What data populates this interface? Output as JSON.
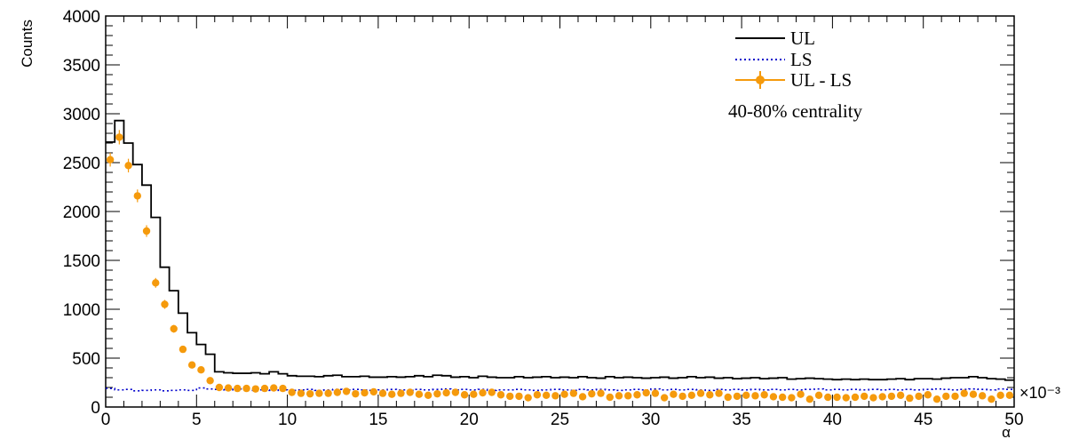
{
  "chart_data": {
    "type": "line",
    "title": "",
    "xlabel": "α",
    "ylabel": "Counts",
    "xlim": [
      0,
      50
    ],
    "ylim": [
      0,
      4000
    ],
    "x_multiplier": "×10⁻³",
    "x_ticks": [
      "0",
      "5",
      "10",
      "15",
      "20",
      "25",
      "30",
      "35",
      "40",
      "45",
      "50"
    ],
    "y_ticks": [
      "0",
      "500",
      "1000",
      "1500",
      "2000",
      "2500",
      "3000",
      "3500",
      "4000"
    ],
    "grid": false,
    "legend_position": "top-right",
    "annotation": "40-80% centrality",
    "bin_width": 0.5,
    "series": [
      {
        "name": "UL",
        "style": "histogram-step",
        "color": "#000000",
        "values": [
          2710,
          2930,
          2700,
          2480,
          2270,
          1940,
          1430,
          1190,
          960,
          760,
          640,
          540,
          360,
          350,
          345,
          345,
          350,
          340,
          360,
          340,
          320,
          315,
          315,
          310,
          320,
          325,
          310,
          310,
          315,
          305,
          305,
          310,
          305,
          310,
          320,
          310,
          325,
          320,
          305,
          310,
          300,
          315,
          305,
          300,
          300,
          310,
          300,
          305,
          310,
          300,
          305,
          300,
          310,
          300,
          295,
          310,
          300,
          305,
          300,
          295,
          300,
          305,
          295,
          300,
          310,
          300,
          305,
          295,
          300,
          290,
          295,
          300,
          290,
          295,
          300,
          285,
          290,
          295,
          290,
          285,
          280,
          285,
          280,
          285,
          280,
          280,
          285,
          290,
          280,
          290,
          290,
          285,
          295,
          300,
          300,
          310,
          300,
          290,
          285,
          275
        ]
      },
      {
        "name": "LS",
        "style": "dotted-step",
        "color": "#0000cc",
        "values": [
          190,
          175,
          180,
          165,
          170,
          175,
          165,
          170,
          175,
          170,
          195,
          185,
          180,
          175,
          185,
          175,
          170,
          175,
          170,
          175,
          170,
          175,
          180,
          170,
          175,
          180,
          175,
          180,
          175,
          170,
          175,
          180,
          175,
          170,
          180,
          175,
          180,
          185,
          175,
          180,
          175,
          180,
          170,
          175,
          175,
          180,
          175,
          170,
          175,
          180,
          175,
          170,
          180,
          175,
          180,
          175,
          170,
          175,
          180,
          175,
          185,
          175,
          180,
          175,
          180,
          175,
          170,
          180,
          175,
          180,
          175,
          180,
          175,
          180,
          175,
          180,
          175,
          180,
          185,
          175,
          180,
          175,
          180,
          175,
          180,
          175,
          180,
          175,
          180,
          175,
          180,
          185,
          180,
          175,
          180,
          185,
          180,
          175,
          185,
          180
        ]
      },
      {
        "name": "UL - LS",
        "style": "markers",
        "color": "#f59a0c",
        "values": [
          2530,
          2760,
          2470,
          2160,
          1800,
          1270,
          1050,
          800,
          590,
          430,
          380,
          270,
          200,
          195,
          190,
          190,
          185,
          190,
          195,
          190,
          150,
          140,
          135,
          140,
          140,
          150,
          160,
          135,
          145,
          155,
          140,
          130,
          140,
          150,
          130,
          120,
          135,
          145,
          150,
          125,
          130,
          145,
          150,
          125,
          110,
          110,
          95,
          125,
          120,
          115,
          130,
          140,
          105,
          135,
          140,
          100,
          115,
          115,
          125,
          145,
          140,
          95,
          130,
          110,
          120,
          140,
          125,
          140,
          100,
          110,
          120,
          115,
          125,
          105,
          100,
          95,
          130,
          80,
          120,
          100,
          100,
          95,
          100,
          110,
          95,
          105,
          110,
          120,
          90,
          110,
          125,
          80,
          110,
          110,
          140,
          130,
          115,
          80,
          120,
          120
        ]
      }
    ]
  }
}
